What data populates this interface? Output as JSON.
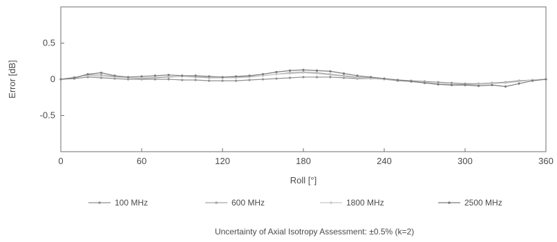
{
  "chart_data": {
    "type": "line",
    "xlabel": "Roll [°]",
    "ylabel": "Error [dB]",
    "xlim": [
      0,
      360
    ],
    "ylim": [
      -1,
      1
    ],
    "x_ticks": [
      0,
      60,
      120,
      180,
      240,
      300,
      360
    ],
    "x_tick_labels": [
      "0",
      "60",
      "120",
      "180",
      "240",
      "300",
      "360"
    ],
    "y_ticks": [
      0.5,
      0,
      -0.5
    ],
    "y_tick_labels": [
      "0.5",
      "0",
      "-0.5"
    ],
    "grid": false,
    "legend_position": "bottom",
    "x": [
      0,
      10,
      20,
      30,
      40,
      50,
      60,
      70,
      80,
      90,
      100,
      110,
      120,
      130,
      140,
      150,
      160,
      170,
      180,
      190,
      200,
      210,
      220,
      230,
      240,
      250,
      260,
      270,
      280,
      290,
      300,
      310,
      320,
      330,
      340,
      350,
      360
    ],
    "series": [
      {
        "name": "100 MHz",
        "color": "#8f8f8f",
        "values": [
          0.0,
          0.01,
          0.03,
          0.02,
          0.01,
          0.0,
          0.0,
          0.0,
          0.0,
          -0.01,
          -0.01,
          -0.02,
          -0.02,
          -0.02,
          -0.01,
          0.0,
          0.01,
          0.02,
          0.03,
          0.03,
          0.03,
          0.02,
          0.01,
          0.01,
          0.0,
          -0.01,
          -0.02,
          -0.03,
          -0.04,
          -0.05,
          -0.06,
          -0.06,
          -0.05,
          -0.04,
          -0.02,
          -0.01,
          0.0
        ]
      },
      {
        "name": "600 MHz",
        "color": "#a5a5a5",
        "values": [
          0.0,
          0.02,
          0.06,
          0.06,
          0.04,
          0.02,
          0.01,
          0.02,
          0.03,
          0.04,
          0.03,
          0.02,
          0.02,
          0.03,
          0.04,
          0.05,
          0.07,
          0.09,
          0.1,
          0.09,
          0.07,
          0.05,
          0.03,
          0.02,
          0.0,
          -0.02,
          -0.03,
          -0.05,
          -0.06,
          -0.07,
          -0.07,
          -0.06,
          -0.05,
          -0.05,
          -0.03,
          -0.01,
          0.0
        ]
      },
      {
        "name": "1800 MHz",
        "color": "#c8c8c8",
        "values": [
          0.0,
          0.03,
          0.05,
          0.04,
          0.03,
          0.02,
          0.02,
          0.03,
          0.04,
          0.04,
          0.04,
          0.03,
          0.02,
          0.02,
          0.03,
          0.05,
          0.07,
          0.08,
          0.09,
          0.08,
          0.06,
          0.04,
          0.02,
          0.01,
          0.0,
          -0.01,
          -0.03,
          -0.04,
          -0.06,
          -0.07,
          -0.08,
          -0.07,
          -0.06,
          -0.05,
          -0.03,
          -0.01,
          0.0
        ]
      },
      {
        "name": "2500 MHz",
        "color": "#7a7a7a",
        "values": [
          0.0,
          0.02,
          0.07,
          0.09,
          0.05,
          0.03,
          0.04,
          0.05,
          0.06,
          0.05,
          0.05,
          0.04,
          0.03,
          0.04,
          0.05,
          0.07,
          0.1,
          0.12,
          0.13,
          0.12,
          0.11,
          0.08,
          0.05,
          0.03,
          0.01,
          -0.01,
          -0.03,
          -0.05,
          -0.07,
          -0.08,
          -0.08,
          -0.09,
          -0.08,
          -0.1,
          -0.06,
          -0.02,
          0.0
        ]
      }
    ]
  },
  "caption": "Uncertainty of Axial Isotropy Assessment: ±0.5% (k=2)"
}
